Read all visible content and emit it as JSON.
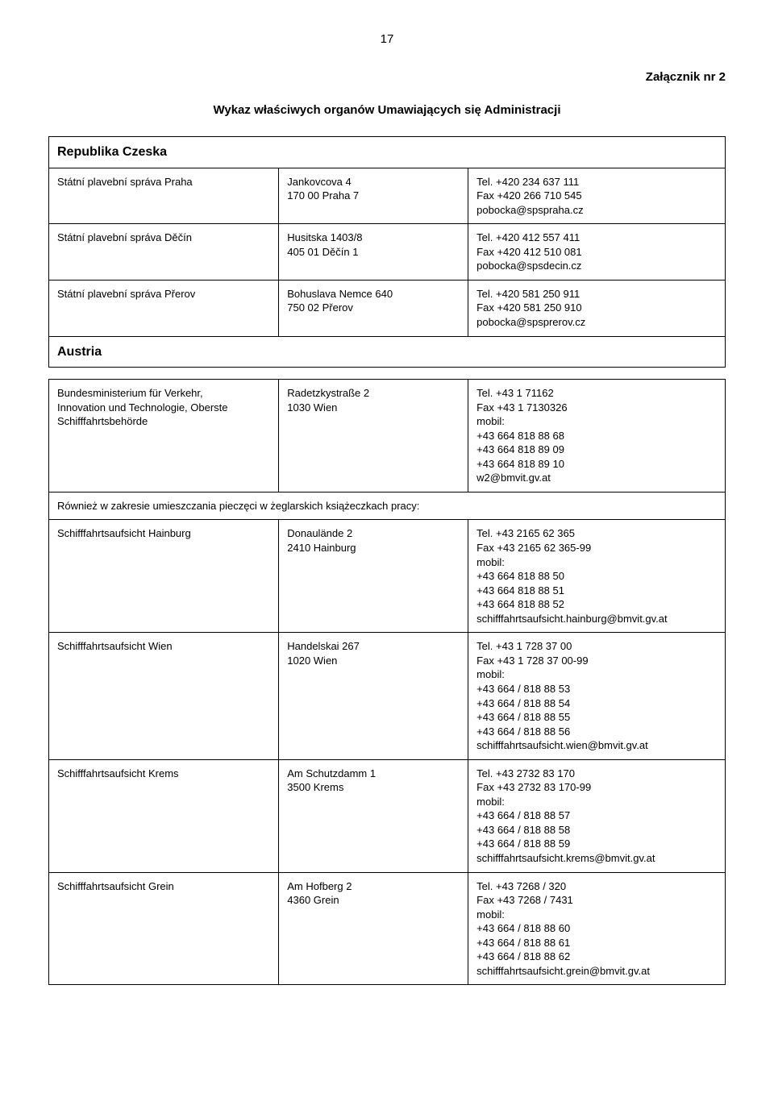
{
  "page_number": "17",
  "attachment_title": "Załącznik nr 2",
  "main_title": "Wykaz właściwych organów Umawiających się Administracji",
  "sections": {
    "czech": {
      "header": "Republika Czeska",
      "rows": [
        {
          "org": "Státní plavební správa Praha",
          "addr_l1": "Jankovcova 4",
          "addr_l2": "170 00 Praha 7",
          "tel": "Tel.  +420 234 637 111",
          "fax": "Fax  +420 266 710 545",
          "email": "pobocka@spspraha.cz"
        },
        {
          "org": "Státní plavební správa Děčín",
          "addr_l1": "Husitska 1403/8",
          "addr_l2": "405 01 Děčín 1",
          "tel": "Tel.  +420 412 557 411",
          "fax": "Fax  +420 412 510 081",
          "email": "pobocka@spsdecin.cz"
        },
        {
          "org": "Státní plavební správa Přerov",
          "addr_l1": "Bohuslava Nemce 640",
          "addr_l2": "750 02 Přerov",
          "tel": "Tel.  +420 581 250 911",
          "fax": "Fax  +420  581 250 910",
          "email": "pobocka@spsprerov.cz"
        }
      ]
    },
    "austria": {
      "header": "Austria",
      "ministry": {
        "org_l1": "Bundesministerium für Verkehr,",
        "org_l2": "Innovation und Technologie, Oberste",
        "org_l3": "Schifffahrtsbehörde",
        "addr_l1": "Radetzkystraße 2",
        "addr_l2": "1030 Wien",
        "tel": "Tel.  +43 1 71162",
        "fax": "Fax  +43 1 7130326",
        "mobil_label": "mobil:",
        "m1": "+43 664 818 88 68",
        "m2": "+43 664 818 89 09",
        "m3": "+43 664 818 89 10",
        "email": "w2@bmvit.gv.at"
      },
      "note": "Również w zakresie umieszczania pieczęci w żeglarskich książeczkach pracy:",
      "rows": [
        {
          "org": "Schifffahrtsaufsicht Hainburg",
          "addr_l1": "Donaulände 2",
          "addr_l2": "2410 Hainburg",
          "tel": "Tel.  +43 2165 62 365",
          "fax": "Fax  +43 2165 62 365-99",
          "mobil_label": "mobil:",
          "m1": "+43 664  818 88 50",
          "m2": "+43 664  818 88 51",
          "m3": "+43 664  818 88 52",
          "email": "schifffahrtsaufsicht.hainburg@bmvit.gv.at"
        },
        {
          "org": "Schifffahrtsaufsicht Wien",
          "addr_l1": "Handelskai 267",
          "addr_l2": "1020 Wien",
          "tel": "Tel.  +43 1 728 37 00",
          "fax": "Fax  +43 1 728 37 00-99",
          "mobil_label": "mobil:",
          "m1": "+43 664 / 818 88 53",
          "m2": "+43 664 / 818 88 54",
          "m3": "+43 664 / 818 88 55",
          "m4": "+43 664 / 818 88 56",
          "email": "schifffahrtsaufsicht.wien@bmvit.gv.at"
        },
        {
          "org": "Schifffahrtsaufsicht Krems",
          "addr_l1": "Am Schutzdamm 1",
          "addr_l2": "3500 Krems",
          "tel": "Tel.  +43 2732 83 170",
          "fax": "Fax  +43 2732 83 170-99",
          "mobil_label": "mobil:",
          "m1": "+43 664 / 818 88 57",
          "m2": "+43 664 / 818 88 58",
          "m3": "+43 664 / 818 88 59",
          "email": "schifffahrtsaufsicht.krems@bmvit.gv.at"
        },
        {
          "org": "Schifffahrtsaufsicht Grein",
          "addr_l1": "Am Hofberg 2",
          "addr_l2": "4360 Grein",
          "tel": "Tel.  +43 7268 / 320",
          "fax": "Fax  +43 7268 / 7431",
          "mobil_label": "mobil:",
          "m1": "+43 664 / 818 88 60",
          "m2": "+43 664 / 818 88 61",
          "m3": "+43 664 / 818 88 62",
          "email": "schifffahrtsaufsicht.grein@bmvit.gv.at"
        }
      ]
    }
  }
}
